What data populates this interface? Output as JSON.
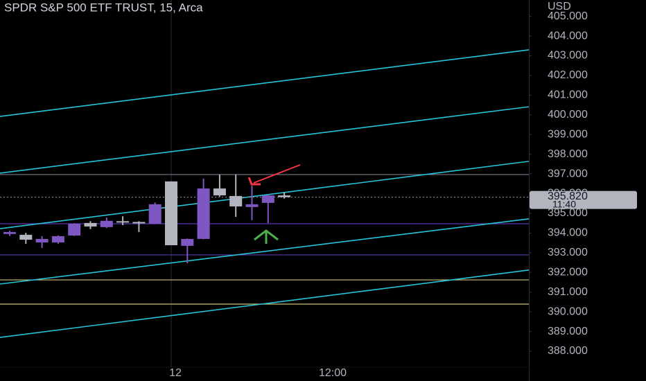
{
  "chart_data": {
    "type": "candlestick",
    "title": "SPDR S&P 500 ETF TRUST, 15, Arca",
    "y_axis_label": "USD",
    "categories": [
      null,
      null,
      null,
      null,
      null,
      null,
      null,
      null,
      null,
      null,
      "12",
      null,
      null,
      null,
      null,
      null,
      null,
      null,
      null,
      null,
      "12:00"
    ],
    "open": [
      393.95,
      393.91,
      393.52,
      393.52,
      393.87,
      394.51,
      394.3,
      394.6,
      394.56,
      394.47,
      396.62,
      393.35,
      393.7,
      396.26,
      395.88,
      395.32,
      395.53,
      395.91,
      null,
      null,
      null
    ],
    "high": [
      394.12,
      394.01,
      393.84,
      393.88,
      394.5,
      394.6,
      394.78,
      394.85,
      394.6,
      395.55,
      396.62,
      393.72,
      396.76,
      396.97,
      396.97,
      396.4,
      395.95,
      396.05,
      null,
      null,
      null
    ],
    "low": [
      393.85,
      393.45,
      393.24,
      393.45,
      393.85,
      394.2,
      394.25,
      394.4,
      394.05,
      394.45,
      393.38,
      392.47,
      393.68,
      395.85,
      394.82,
      394.65,
      394.5,
      395.75,
      null,
      null,
      null
    ],
    "close": [
      394.05,
      393.66,
      393.7,
      393.84,
      394.47,
      394.33,
      394.62,
      394.55,
      394.52,
      395.46,
      393.38,
      393.7,
      396.26,
      395.91,
      395.35,
      395.46,
      395.91,
      395.82,
      null,
      null,
      null
    ],
    "up_color": "#7e57c2",
    "down_color": "#b2b5be",
    "ylim": [
      387.19,
      405.83
    ],
    "yticks": [
      {
        "value": 388,
        "label": "388.000"
      },
      {
        "value": 389,
        "label": "389.000"
      },
      {
        "value": 390,
        "label": "390.000"
      },
      {
        "value": 391,
        "label": "391.000"
      },
      {
        "value": 392,
        "label": "392.000"
      },
      {
        "value": 393,
        "label": "393.000"
      },
      {
        "value": 394,
        "label": "394.000"
      },
      {
        "value": 395,
        "label": "395.000"
      },
      {
        "value": 396,
        "label": "396.000"
      },
      {
        "value": 397,
        "label": "397.000"
      },
      {
        "value": 398,
        "label": "398.000"
      },
      {
        "value": 399,
        "label": "399.000"
      },
      {
        "value": 400,
        "label": "400.000"
      },
      {
        "value": 401,
        "label": "401.000"
      },
      {
        "value": 402,
        "label": "402.000"
      },
      {
        "value": 403,
        "label": "403.000"
      },
      {
        "value": 404,
        "label": "404.000"
      },
      {
        "value": 405,
        "label": "405.000"
      }
    ],
    "current_price": {
      "value": 395.82,
      "label": "395.820"
    },
    "countdown": "11:40",
    "levels": [
      {
        "value": 396.97,
        "color": "#787b86"
      },
      {
        "value": 394.47,
        "color": "#5e35b1"
      },
      {
        "value": 392.89,
        "color": "#5e35b1"
      },
      {
        "value": 391.62,
        "color": "#c9c27a"
      },
      {
        "value": 390.39,
        "color": "#c9c27a"
      }
    ],
    "trendlines": [
      {
        "start": 399.92,
        "end": 403.3,
        "color": "#26c6da"
      },
      {
        "start": 397.04,
        "end": 400.41,
        "color": "#26c6da"
      },
      {
        "start": 394.22,
        "end": 397.64,
        "color": "#26c6da"
      },
      {
        "start": 391.41,
        "end": 394.72,
        "color": "#26c6da"
      },
      {
        "start": 388.7,
        "end": 392.12,
        "color": "#26c6da"
      }
    ]
  }
}
